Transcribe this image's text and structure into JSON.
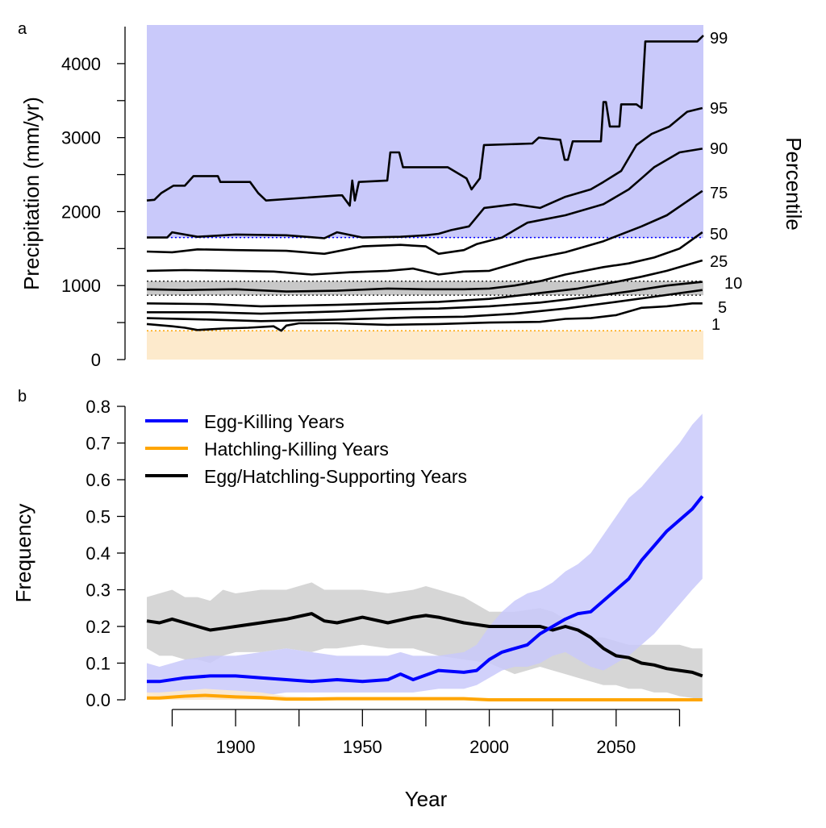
{
  "colors": {
    "egg": "#0000ff",
    "hatch": "#ffa500",
    "support": "#000000",
    "blue_band": "#c9c9fa",
    "orange_band": "#fdeacc",
    "gray_band": "#c8c8c8"
  },
  "chart_data": [
    {
      "panel_label": "a",
      "type": "line",
      "ylabel": "Precipitation (mm/yr)",
      "right_label": "Percentile",
      "ylim": [
        0,
        4500
      ],
      "xlim": [
        1865,
        2085
      ],
      "yticks": [
        0,
        500,
        1000,
        1500,
        2000,
        2500,
        3000,
        3500,
        4000
      ],
      "ytick_labels": [
        "0",
        "",
        "1000",
        "",
        "2000",
        "",
        "3000",
        "",
        "4000"
      ],
      "thresholds": {
        "egg_killing_above": 1650,
        "hatchling_killing_below": 390,
        "supporting_band": [
          870,
          1060
        ]
      },
      "series": [
        {
          "name": "99",
          "x": [
            1865,
            1868,
            1870.7,
            1875.5,
            1880,
            1883.4,
            1893,
            1894,
            1905.7,
            1908.9,
            1912,
            1940.7,
            1942,
            1945,
            1946,
            1947,
            1948.6,
            1959.8,
            1961,
            1964.5,
            1966,
            1983.6,
            1991,
            1993,
            1996.3,
            1997.9,
            2017,
            2019.5,
            2028,
            2029.7,
            2031,
            2032.9,
            2044,
            2045,
            2046,
            2047.5,
            2051.3,
            2052,
            2058,
            2060,
            2061.5,
            2082,
            2084.4
          ],
          "y": [
            2150,
            2160,
            2250,
            2350,
            2350,
            2480,
            2480,
            2400,
            2400,
            2250,
            2150,
            2220,
            2220,
            2080,
            2420,
            2150,
            2400,
            2420,
            2800,
            2800,
            2600,
            2600,
            2450,
            2300,
            2450,
            2900,
            2920,
            3000,
            2970,
            2700,
            2700,
            2950,
            2950,
            3480,
            3480,
            3150,
            3150,
            3450,
            3450,
            3400,
            4300,
            4300,
            4380
          ]
        },
        {
          "name": "95",
          "x": [
            1865,
            1873,
            1875,
            1885,
            1900,
            1920,
            1935,
            1940,
            1950,
            1965,
            1975,
            1980,
            1985,
            1992,
            1998,
            2010,
            2020,
            2030,
            2040,
            2045,
            2052,
            2058,
            2064,
            2071,
            2078,
            2084
          ],
          "y": [
            1650,
            1650,
            1720,
            1660,
            1690,
            1680,
            1640,
            1720,
            1650,
            1660,
            1680,
            1700,
            1750,
            1800,
            2050,
            2100,
            2050,
            2200,
            2300,
            2400,
            2550,
            2900,
            3050,
            3150,
            3350,
            3400
          ]
        },
        {
          "name": "90",
          "x": [
            1865,
            1875,
            1885,
            1900,
            1920,
            1935,
            1950,
            1965,
            1975,
            1980,
            1990,
            1995,
            2005,
            2015,
            2030,
            2045,
            2055,
            2060,
            2065,
            2075,
            2084
          ],
          "y": [
            1460,
            1450,
            1490,
            1480,
            1470,
            1430,
            1530,
            1550,
            1530,
            1430,
            1480,
            1560,
            1650,
            1850,
            1950,
            2100,
            2300,
            2450,
            2600,
            2800,
            2850
          ]
        },
        {
          "name": "75",
          "x": [
            1865,
            1880,
            1900,
            1915,
            1930,
            1945,
            1960,
            1970,
            1980,
            1990,
            2000,
            2015,
            2030,
            2045,
            2060,
            2070,
            2084
          ],
          "y": [
            1200,
            1210,
            1200,
            1190,
            1150,
            1180,
            1200,
            1230,
            1150,
            1190,
            1200,
            1350,
            1450,
            1600,
            1800,
            1950,
            2280
          ]
        },
        {
          "name": "50",
          "x": [
            1865,
            1880,
            1900,
            1920,
            1940,
            1960,
            1975,
            1990,
            2000,
            2010,
            2020,
            2030,
            2045,
            2055,
            2065,
            2075,
            2084
          ],
          "y": [
            950,
            940,
            950,
            920,
            930,
            960,
            950,
            950,
            960,
            1000,
            1060,
            1150,
            1250,
            1300,
            1380,
            1500,
            1720
          ]
        },
        {
          "name": "25",
          "x": [
            1865,
            1890,
            1910,
            1940,
            1960,
            1980,
            2000,
            2020,
            2035,
            2050,
            2060,
            2070,
            2084
          ],
          "y": [
            760,
            750,
            720,
            740,
            760,
            780,
            820,
            900,
            960,
            1050,
            1120,
            1200,
            1340
          ]
        },
        {
          "name": "10",
          "x": [
            1865,
            1890,
            1910,
            1940,
            1960,
            1980,
            2000,
            2020,
            2040,
            2055,
            2070,
            2084
          ],
          "y": [
            640,
            640,
            620,
            650,
            680,
            690,
            720,
            770,
            850,
            920,
            1000,
            1050
          ]
        },
        {
          "name": "5",
          "x": [
            1865,
            1890,
            1910,
            1940,
            1970,
            1990,
            2010,
            2030,
            2050,
            2065,
            2084
          ],
          "y": [
            560,
            540,
            520,
            540,
            570,
            580,
            620,
            690,
            780,
            850,
            940
          ]
        },
        {
          "name": "1",
          "x": [
            1865,
            1875,
            1880,
            1885,
            1895,
            1905,
            1915,
            1918,
            1920,
            1925,
            1940,
            1960,
            1980,
            2000,
            2020,
            2030,
            2040,
            2050,
            2060,
            2070,
            2080,
            2084
          ],
          "y": [
            480,
            450,
            430,
            400,
            420,
            430,
            450,
            390,
            460,
            490,
            490,
            470,
            480,
            500,
            510,
            550,
            560,
            600,
            700,
            720,
            760,
            760
          ]
        }
      ],
      "percentile_labels": [
        "99",
        "95",
        "90",
        "75",
        "50",
        "25",
        "10",
        "5",
        "1"
      ]
    },
    {
      "panel_label": "b",
      "type": "line",
      "ylabel": "Frequency",
      "xlabel": "Year",
      "ylim": [
        0,
        0.8
      ],
      "xlim": [
        1865,
        2085
      ],
      "yticks": [
        "0.0",
        "0.1",
        "0.2",
        "0.3",
        "0.4",
        "0.5",
        "0.6",
        "0.7",
        "0.8"
      ],
      "xticks": [
        1875,
        1900,
        1925,
        1950,
        1975,
        2000,
        2025,
        2050,
        2075
      ],
      "xtick_labels": [
        "",
        "1900",
        "",
        "1950",
        "",
        "2000",
        "",
        "2050",
        ""
      ],
      "legend": {
        "placement": "top-left",
        "entries": [
          "Egg-Killing Years",
          "Hatchling-Killing Years",
          "Egg/Hatchling-Supporting Years"
        ]
      },
      "series": [
        {
          "name": "Egg-Killing Years",
          "x": [
            1865,
            1870,
            1880,
            1890,
            1900,
            1910,
            1920,
            1930,
            1940,
            1950,
            1960,
            1965,
            1970,
            1980,
            1990,
            1995,
            2000,
            2005,
            2010,
            2015,
            2020,
            2025,
            2030,
            2035,
            2040,
            2045,
            2050,
            2055,
            2060,
            2065,
            2070,
            2075,
            2080,
            2084
          ],
          "y": [
            0.05,
            0.05,
            0.06,
            0.065,
            0.065,
            0.06,
            0.055,
            0.05,
            0.055,
            0.05,
            0.055,
            0.07,
            0.055,
            0.08,
            0.075,
            0.08,
            0.11,
            0.13,
            0.14,
            0.15,
            0.18,
            0.2,
            0.22,
            0.235,
            0.24,
            0.27,
            0.3,
            0.33,
            0.38,
            0.42,
            0.46,
            0.49,
            0.52,
            0.555
          ],
          "lower": [
            0.02,
            0.01,
            0.0,
            0.0,
            0.0,
            0.01,
            0.02,
            0.02,
            0.02,
            0.02,
            0.02,
            0.02,
            0.02,
            0.03,
            0.03,
            0.04,
            0.06,
            0.08,
            0.09,
            0.09,
            0.1,
            0.12,
            0.13,
            0.11,
            0.09,
            0.08,
            0.1,
            0.12,
            0.15,
            0.18,
            0.22,
            0.26,
            0.3,
            0.33
          ],
          "upper": [
            0.1,
            0.09,
            0.11,
            0.12,
            0.12,
            0.13,
            0.14,
            0.13,
            0.12,
            0.12,
            0.12,
            0.13,
            0.12,
            0.12,
            0.13,
            0.15,
            0.2,
            0.24,
            0.27,
            0.29,
            0.3,
            0.32,
            0.35,
            0.37,
            0.4,
            0.45,
            0.5,
            0.55,
            0.58,
            0.62,
            0.66,
            0.7,
            0.75,
            0.78
          ]
        },
        {
          "name": "Hatchling-Killing Years",
          "x": [
            1865,
            1870,
            1880,
            1888,
            1900,
            1910,
            1920,
            1930,
            1940,
            1950,
            1960,
            1970,
            1980,
            1990,
            2000,
            2020,
            2050,
            2084
          ],
          "y": [
            0.005,
            0.005,
            0.01,
            0.012,
            0.008,
            0.006,
            0.002,
            0.002,
            0.003,
            0.003,
            0.003,
            0.003,
            0.003,
            0.003,
            0.0,
            0.0,
            0.0,
            0.0
          ],
          "lower": [
            0,
            0,
            0,
            0,
            0,
            0,
            0,
            0,
            0,
            0,
            0,
            0,
            0,
            0,
            0,
            0,
            0,
            0
          ],
          "upper": [
            0.02,
            0.02,
            0.025,
            0.03,
            0.025,
            0.02,
            0.01,
            0.008,
            0.008,
            0.008,
            0.008,
            0.008,
            0.008,
            0.008,
            0.0,
            0.0,
            0.0,
            0.0
          ]
        },
        {
          "name": "Egg/Hatchling-Supporting Years",
          "x": [
            1865,
            1870,
            1875,
            1880,
            1885,
            1890,
            1895,
            1900,
            1910,
            1920,
            1930,
            1935,
            1940,
            1950,
            1960,
            1970,
            1975,
            1980,
            1990,
            2000,
            2010,
            2020,
            2025,
            2030,
            2035,
            2040,
            2045,
            2050,
            2055,
            2060,
            2065,
            2070,
            2075,
            2080,
            2084
          ],
          "y": [
            0.215,
            0.21,
            0.22,
            0.21,
            0.2,
            0.19,
            0.195,
            0.2,
            0.21,
            0.22,
            0.235,
            0.215,
            0.21,
            0.225,
            0.21,
            0.225,
            0.23,
            0.225,
            0.21,
            0.2,
            0.2,
            0.2,
            0.19,
            0.2,
            0.19,
            0.17,
            0.14,
            0.12,
            0.115,
            0.1,
            0.095,
            0.085,
            0.08,
            0.075,
            0.065
          ],
          "lower": [
            0.14,
            0.12,
            0.12,
            0.11,
            0.11,
            0.1,
            0.12,
            0.13,
            0.13,
            0.14,
            0.13,
            0.14,
            0.14,
            0.15,
            0.14,
            0.14,
            0.13,
            0.12,
            0.11,
            0.1,
            0.07,
            0.09,
            0.08,
            0.07,
            0.06,
            0.05,
            0.04,
            0.04,
            0.03,
            0.03,
            0.02,
            0.02,
            0.01,
            0.005,
            0.0
          ],
          "upper": [
            0.28,
            0.29,
            0.3,
            0.28,
            0.28,
            0.27,
            0.3,
            0.29,
            0.3,
            0.3,
            0.32,
            0.3,
            0.3,
            0.3,
            0.29,
            0.3,
            0.31,
            0.3,
            0.28,
            0.24,
            0.24,
            0.25,
            0.24,
            0.22,
            0.2,
            0.17,
            0.17,
            0.16,
            0.15,
            0.15,
            0.15,
            0.15,
            0.15,
            0.14,
            0.14
          ]
        }
      ]
    }
  ]
}
